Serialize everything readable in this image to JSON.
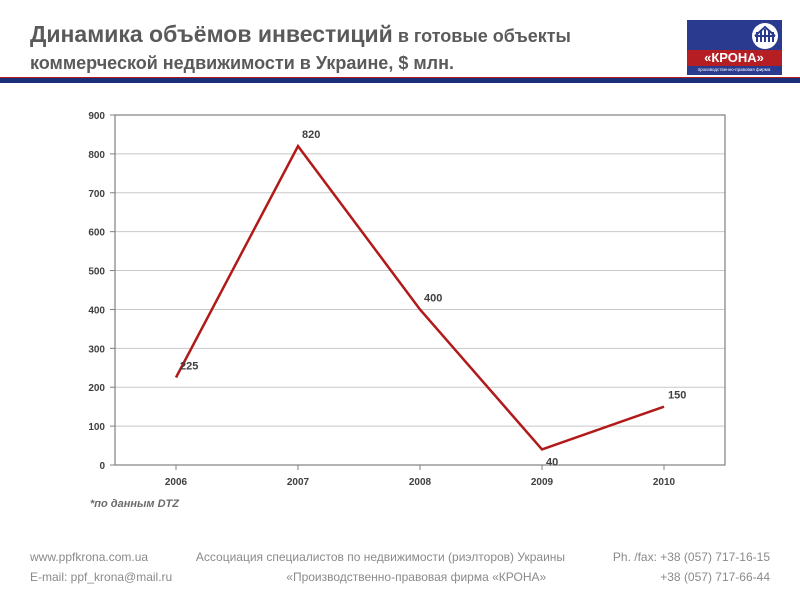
{
  "header": {
    "title_main": "Динамика объёмов инвестиций",
    "title_suffix": " в готовые объекты",
    "title_line2": "коммерческой недвижимости в Украине, $ млн.",
    "underline_red": "#b31b1b",
    "underline_blue": "#1a2e7a",
    "title_color": "#5a5a5a"
  },
  "logo": {
    "text": "«КРОНА»",
    "subtext": "производственно-правовая фирма",
    "bg_color": "#2a3b8f",
    "ribbon_color": "#b51f24",
    "circle_bg": "#ffffff"
  },
  "chart": {
    "type": "line",
    "background_color": "#ffffff",
    "plot_border_color": "#808080",
    "grid_color": "#c8c8c8",
    "x_categories": [
      "2006",
      "2007",
      "2008",
      "2009",
      "2010"
    ],
    "y_min": 0,
    "y_max": 900,
    "y_tick_step": 100,
    "values": [
      225,
      820,
      400,
      40,
      150
    ],
    "value_labels": [
      "225",
      "820",
      "400",
      "40",
      "150"
    ],
    "line_color": "#b21a1a",
    "line_width": 2.5,
    "tick_font_size": 10,
    "tick_font_weight": "bold",
    "tick_color": "#404040",
    "data_label_font_size": 11,
    "data_label_font_weight": "bold",
    "data_label_color": "#404040",
    "note": "*по данным DTZ"
  },
  "footer": {
    "row1_left": "www.ppfkrona.com.ua",
    "row1_mid": "Ассоциация специалистов по недвижимости (риэлторов) Украины",
    "row1_right": "Ph. /fax: +38 (057) 717-16-15",
    "row2_left": "E-mail: ppf_krona@mail.ru",
    "row2_mid": "«Производственно-правовая фирма «КРОНА»",
    "row2_right": "+38 (057) 717-66-44",
    "text_color": "#8a8a8a"
  }
}
